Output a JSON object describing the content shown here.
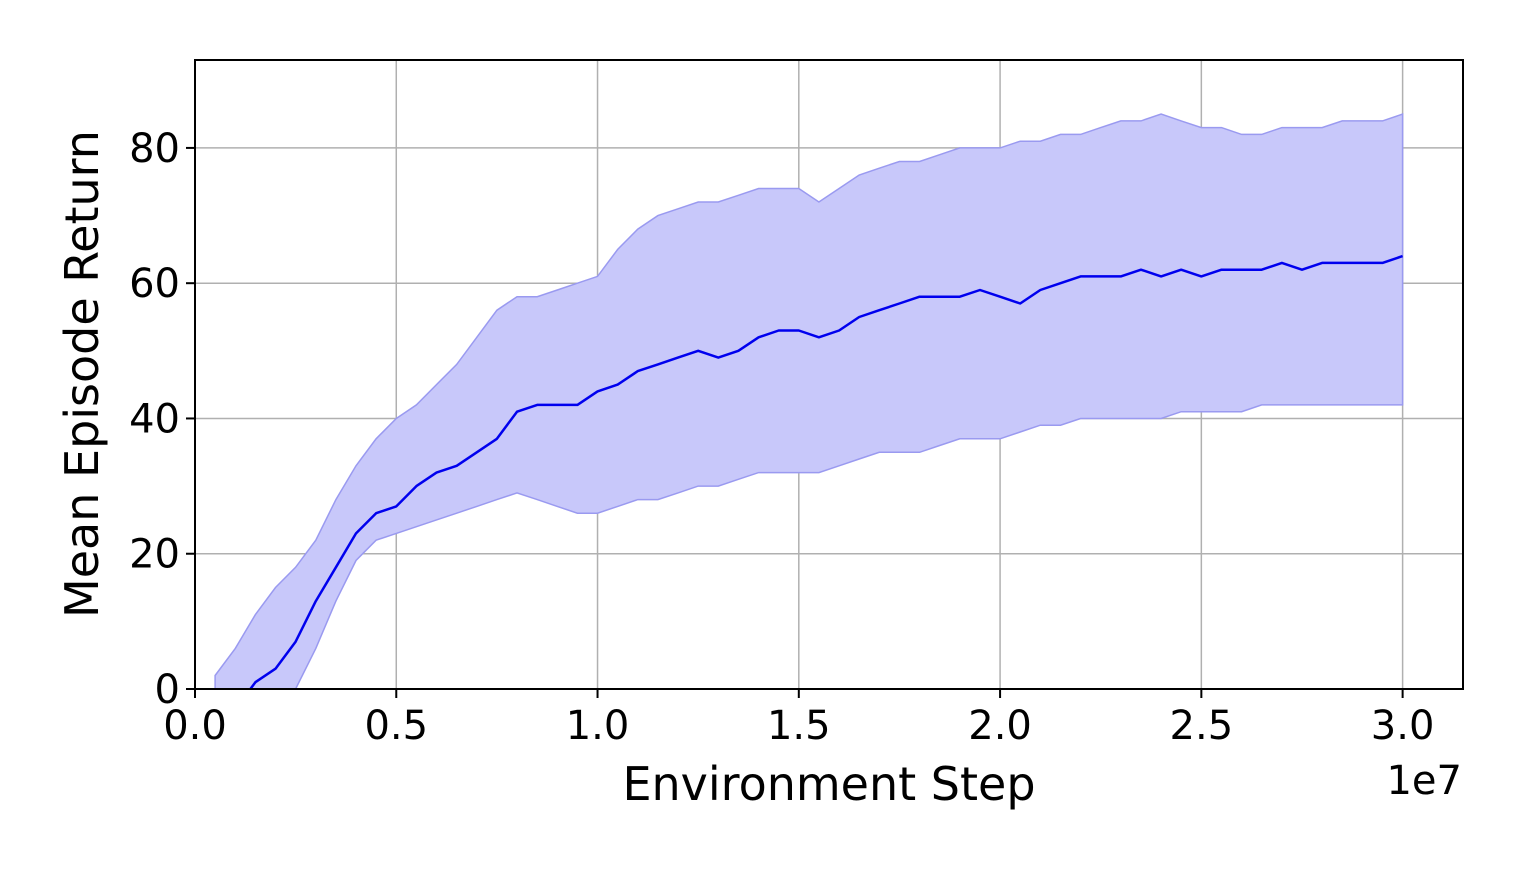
{
  "chart_data": {
    "type": "line",
    "title": "",
    "xlabel": "Environment Step",
    "ylabel": "Mean Episode Return",
    "x_offset_label": "1e7",
    "xlim": [
      0,
      3.15
    ],
    "ylim": [
      0,
      93
    ],
    "x_unit_multiplier": 10000000,
    "xticks": [
      0.0,
      0.5,
      1.0,
      1.5,
      2.0,
      2.5,
      3.0
    ],
    "xtick_labels": [
      "0.0",
      "0.5",
      "1.0",
      "1.5",
      "2.0",
      "2.5",
      "3.0"
    ],
    "yticks": [
      0,
      20,
      40,
      60,
      80
    ],
    "ytick_labels": [
      "0",
      "20",
      "40",
      "60",
      "80"
    ],
    "grid": true,
    "legend": "none",
    "colors": {
      "line": "#0000ee",
      "band": "#c8c8fa",
      "band_edge": "#9a9af0"
    },
    "series": [
      {
        "x": [
          0.05,
          0.1,
          0.15,
          0.2,
          0.25,
          0.3,
          0.35,
          0.4,
          0.45,
          0.5,
          0.55,
          0.6,
          0.65,
          0.7,
          0.75,
          0.8,
          0.85,
          0.9,
          0.95,
          1.0,
          1.05,
          1.1,
          1.15,
          1.2,
          1.25,
          1.3,
          1.35,
          1.4,
          1.45,
          1.5,
          1.55,
          1.6,
          1.65,
          1.7,
          1.75,
          1.8,
          1.85,
          1.9,
          1.95,
          2.0,
          2.05,
          2.1,
          2.15,
          2.2,
          2.25,
          2.3,
          2.35,
          2.4,
          2.45,
          2.5,
          2.55,
          2.6,
          2.65,
          2.7,
          2.75,
          2.8,
          2.85,
          2.9,
          2.95,
          3.0
        ],
        "y": [
          -5,
          -3,
          1,
          3,
          7,
          13,
          18,
          23,
          26,
          27,
          30,
          32,
          33,
          35,
          37,
          41,
          42,
          42,
          42,
          44,
          45,
          47,
          48,
          49,
          50,
          49,
          50,
          52,
          53,
          53,
          52,
          53,
          55,
          56,
          57,
          58,
          58,
          58,
          59,
          58,
          57,
          59,
          60,
          61,
          61,
          61,
          62,
          61,
          62,
          61,
          62,
          62,
          62,
          63,
          62,
          63,
          63,
          63,
          63,
          64
        ],
        "lower": [
          -8,
          -6,
          -5,
          -3,
          0,
          6,
          13,
          19,
          22,
          23,
          24,
          25,
          26,
          27,
          28,
          29,
          28,
          27,
          26,
          26,
          27,
          28,
          28,
          29,
          30,
          30,
          31,
          32,
          32,
          32,
          32,
          33,
          34,
          35,
          35,
          35,
          36,
          37,
          37,
          37,
          38,
          39,
          39,
          40,
          40,
          40,
          40,
          40,
          41,
          41,
          41,
          41,
          42,
          42,
          42,
          42,
          42,
          42,
          42,
          42
        ],
        "upper": [
          2,
          6,
          11,
          15,
          18,
          22,
          28,
          33,
          37,
          40,
          42,
          45,
          48,
          52,
          56,
          58,
          58,
          59,
          60,
          61,
          65,
          68,
          70,
          71,
          72,
          72,
          73,
          74,
          74,
          74,
          72,
          74,
          76,
          77,
          78,
          78,
          79,
          80,
          80,
          80,
          81,
          81,
          82,
          82,
          83,
          84,
          84,
          85,
          84,
          83,
          83,
          82,
          82,
          83,
          83,
          83,
          84,
          84,
          84,
          85
        ]
      }
    ]
  }
}
